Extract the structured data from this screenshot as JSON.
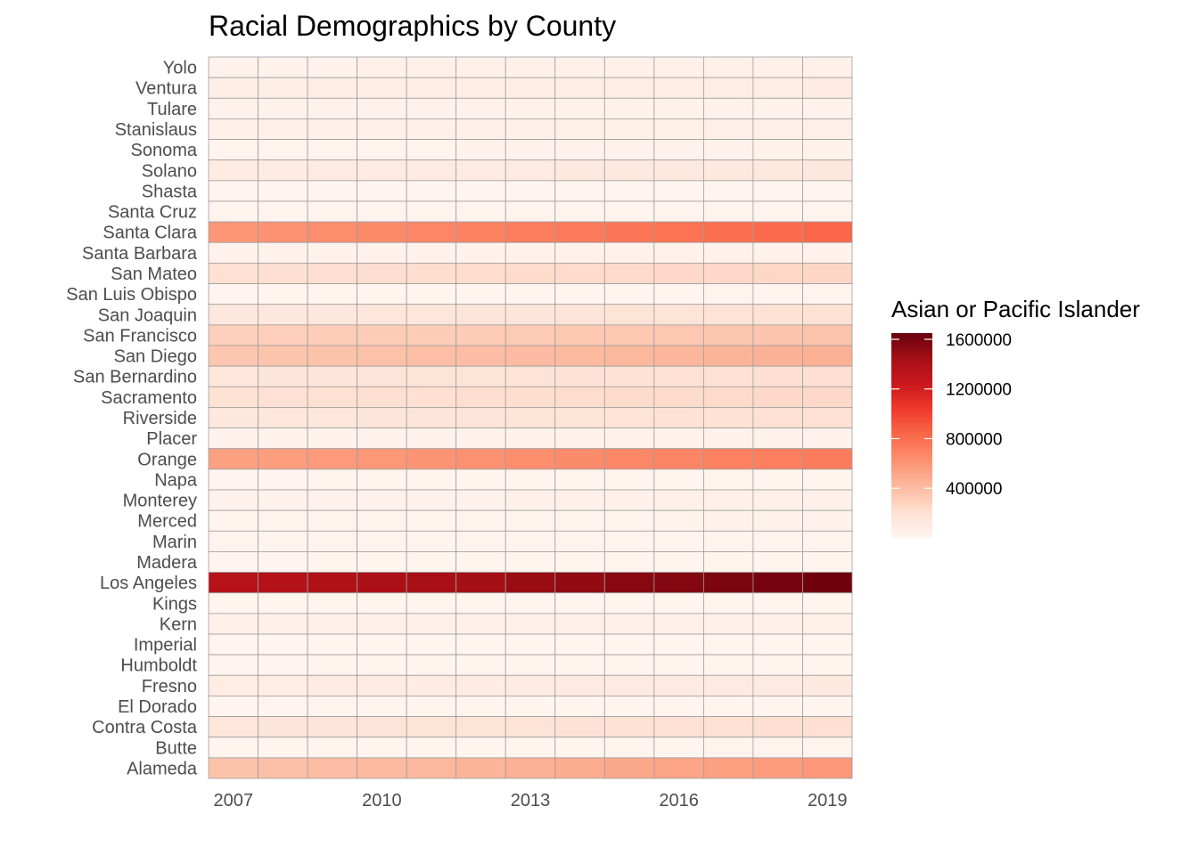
{
  "chart_data": {
    "type": "heatmap",
    "title": "Racial Demographics by County",
    "xlabel": "",
    "ylabel": "",
    "x_tick_labels": [
      "2007",
      "2010",
      "2013",
      "2016",
      "2019"
    ],
    "years": [
      2007,
      2008,
      2009,
      2010,
      2011,
      2012,
      2013,
      2014,
      2015,
      2016,
      2017,
      2018,
      2019
    ],
    "counties": [
      "Yolo",
      "Ventura",
      "Tulare",
      "Stanislaus",
      "Sonoma",
      "Solano",
      "Shasta",
      "Santa Cruz",
      "Santa Clara",
      "Santa Barbara",
      "San Mateo",
      "San Luis Obispo",
      "San Joaquin",
      "San Francisco",
      "San Diego",
      "San Bernardino",
      "Sacramento",
      "Riverside",
      "Placer",
      "Orange",
      "Napa",
      "Monterey",
      "Merced",
      "Marin",
      "Madera",
      "Los Angeles",
      "Kings",
      "Kern",
      "Imperial",
      "Humboldt",
      "Fresno",
      "El Dorado",
      "Contra Costa",
      "Butte",
      "Alameda"
    ],
    "values": [
      [
        35000,
        36000,
        37000,
        38000,
        39000,
        40000,
        41000,
        42000,
        43000,
        44000,
        45000,
        46000,
        47000
      ],
      [
        70000,
        72000,
        74000,
        76000,
        78000,
        80000,
        82000,
        84000,
        86000,
        88000,
        90000,
        92000,
        94000
      ],
      [
        25000,
        26000,
        27000,
        28000,
        29000,
        30000,
        31000,
        32000,
        33000,
        34000,
        35000,
        36000,
        37000
      ],
      [
        45000,
        46000,
        47000,
        48000,
        49000,
        50000,
        51000,
        52000,
        53000,
        54000,
        55000,
        56000,
        57000
      ],
      [
        20000,
        21000,
        22000,
        23000,
        24000,
        25000,
        26000,
        27000,
        28000,
        29000,
        30000,
        31000,
        32000
      ],
      [
        100000,
        102000,
        104000,
        106000,
        108000,
        110000,
        112000,
        114000,
        116000,
        118000,
        120000,
        122000,
        124000
      ],
      [
        6000,
        6200,
        6400,
        6600,
        6800,
        7000,
        7200,
        7400,
        7600,
        7800,
        8000,
        8200,
        8400
      ],
      [
        15000,
        15500,
        16000,
        16500,
        17000,
        17500,
        18000,
        18500,
        19000,
        19500,
        20000,
        20500,
        21000
      ],
      [
        600000,
        620000,
        640000,
        660000,
        680000,
        700000,
        720000,
        740000,
        760000,
        780000,
        800000,
        820000,
        840000
      ],
      [
        25000,
        26000,
        27000,
        28000,
        29000,
        30000,
        31000,
        32000,
        33000,
        34000,
        35000,
        36000,
        37000
      ],
      [
        200000,
        205000,
        210000,
        215000,
        220000,
        225000,
        230000,
        235000,
        240000,
        245000,
        250000,
        255000,
        260000
      ],
      [
        10000,
        10500,
        11000,
        11500,
        12000,
        12500,
        13000,
        13500,
        14000,
        14500,
        15000,
        15500,
        16000
      ],
      [
        130000,
        135000,
        140000,
        145000,
        150000,
        155000,
        160000,
        165000,
        170000,
        175000,
        180000,
        185000,
        190000
      ],
      [
        300000,
        305000,
        310000,
        315000,
        320000,
        325000,
        330000,
        335000,
        340000,
        345000,
        350000,
        355000,
        360000
      ],
      [
        350000,
        360000,
        370000,
        380000,
        390000,
        400000,
        410000,
        420000,
        430000,
        440000,
        450000,
        460000,
        470000
      ],
      [
        150000,
        155000,
        160000,
        165000,
        170000,
        175000,
        180000,
        185000,
        190000,
        195000,
        200000,
        205000,
        210000
      ],
      [
        190000,
        195000,
        200000,
        205000,
        210000,
        215000,
        220000,
        225000,
        230000,
        235000,
        240000,
        245000,
        250000
      ],
      [
        140000,
        145000,
        150000,
        155000,
        160000,
        165000,
        170000,
        175000,
        180000,
        185000,
        190000,
        195000,
        200000
      ],
      [
        25000,
        26000,
        27000,
        28000,
        29000,
        30000,
        31000,
        32000,
        33000,
        34000,
        35000,
        36000,
        37000
      ],
      [
        550000,
        565000,
        580000,
        595000,
        610000,
        625000,
        640000,
        655000,
        670000,
        685000,
        700000,
        715000,
        730000
      ],
      [
        10000,
        10300,
        10600,
        10900,
        11200,
        11500,
        11800,
        12100,
        12400,
        12700,
        13000,
        13300,
        13600
      ],
      [
        35000,
        35500,
        36000,
        36500,
        37000,
        37500,
        38000,
        38500,
        39000,
        39500,
        40000,
        40500,
        41000
      ],
      [
        20000,
        20500,
        21000,
        21500,
        22000,
        22500,
        23000,
        23500,
        24000,
        24500,
        25000,
        25500,
        26000
      ],
      [
        15000,
        15300,
        15600,
        15900,
        16200,
        16500,
        16800,
        17100,
        17400,
        17700,
        18000,
        18300,
        18600
      ],
      [
        10000,
        10200,
        10400,
        10600,
        10800,
        11000,
        11200,
        11400,
        11600,
        11800,
        12000,
        12200,
        12400
      ],
      [
        1350000,
        1370000,
        1390000,
        1410000,
        1430000,
        1450000,
        1480000,
        1510000,
        1540000,
        1560000,
        1580000,
        1600000,
        1620000
      ],
      [
        12000,
        12200,
        12400,
        12600,
        12800,
        13000,
        13200,
        13400,
        13600,
        13800,
        14000,
        14200,
        14400
      ],
      [
        40000,
        41000,
        42000,
        43000,
        44000,
        45000,
        46000,
        47000,
        48000,
        49000,
        50000,
        51000,
        52000
      ],
      [
        10000,
        10200,
        10400,
        10600,
        10800,
        11000,
        11200,
        11400,
        11600,
        11800,
        12000,
        12200,
        12400
      ],
      [
        10000,
        10200,
        10400,
        10600,
        10800,
        11000,
        11200,
        11400,
        11600,
        11800,
        12000,
        12200,
        12400
      ],
      [
        90000,
        92000,
        94000,
        96000,
        98000,
        100000,
        102000,
        104000,
        106000,
        108000,
        110000,
        112000,
        114000
      ],
      [
        10000,
        10300,
        10600,
        10900,
        11200,
        11500,
        11800,
        12100,
        12400,
        12700,
        13000,
        13300,
        13600
      ],
      [
        150000,
        155000,
        160000,
        165000,
        170000,
        175000,
        180000,
        185000,
        190000,
        195000,
        200000,
        205000,
        210000
      ],
      [
        12000,
        12300,
        12600,
        12900,
        13200,
        13500,
        13800,
        14100,
        14400,
        14700,
        15000,
        15300,
        15600
      ],
      [
        370000,
        385000,
        400000,
        415000,
        430000,
        450000,
        470000,
        490000,
        510000,
        530000,
        550000,
        570000,
        590000
      ]
    ],
    "color_scale": {
      "min": 0,
      "max": 1650000,
      "stops": [
        "#fff5f0",
        "#fee0d2",
        "#fcbba1",
        "#fc9272",
        "#fb6a4a",
        "#ef3b2c",
        "#cb181d",
        "#a50f15",
        "#67000d"
      ]
    },
    "legend": {
      "title": "Asian or Pacific Islander",
      "ticks": [
        400000,
        800000,
        1200000,
        1600000
      ],
      "tick_labels": [
        "400000",
        "800000",
        "1200000",
        "1600000"
      ],
      "placement": "right"
    },
    "grid": false
  }
}
